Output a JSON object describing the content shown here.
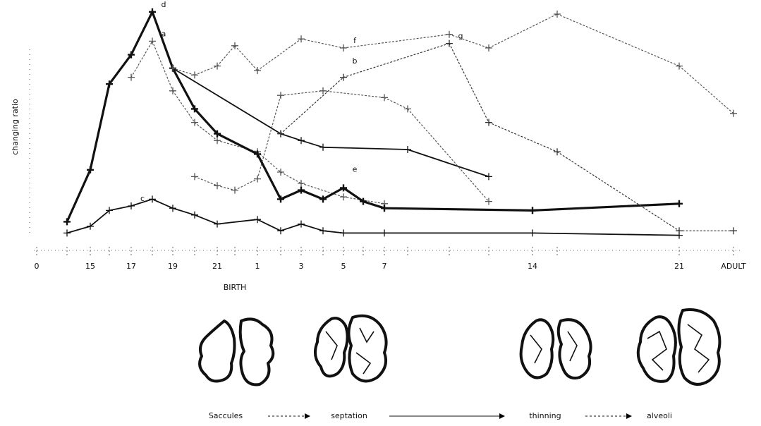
{
  "chart_data": {
    "type": "line",
    "y_label": "changing ratio",
    "categories": [
      "0",
      null,
      "15",
      null,
      "17",
      null,
      "19",
      null,
      "21",
      "BIRTH",
      "1",
      null,
      "3",
      null,
      "5",
      null,
      "7",
      null,
      null,
      null,
      "14",
      null,
      "21",
      "ADULT"
    ],
    "ylim": [
      0,
      105
    ],
    "series": [
      {
        "name": "a",
        "color": "#555",
        "style": "dotted",
        "values": [
          null,
          null,
          null,
          null,
          72,
          88,
          66,
          52,
          44,
          null,
          39,
          30,
          25,
          null,
          19,
          null,
          16,
          null,
          null,
          null,
          null,
          null,
          null,
          null
        ]
      },
      {
        "name": "b",
        "color": "#111",
        "style": "solid",
        "values": [
          null,
          null,
          null,
          null,
          null,
          null,
          76,
          null,
          null,
          null,
          null,
          47,
          44,
          41,
          null,
          null,
          null,
          40,
          null,
          28,
          null,
          null,
          null,
          null
        ]
      },
      {
        "name": "c",
        "color": "#111",
        "style": "solid",
        "values": [
          null,
          3,
          6,
          13,
          15,
          18,
          14,
          11,
          7,
          null,
          9,
          4,
          7,
          4,
          3,
          null,
          3,
          null,
          null,
          null,
          3,
          null,
          2,
          null
        ]
      },
      {
        "name": "d",
        "color": "#111",
        "style": "bold",
        "values": [
          null,
          8,
          31,
          69,
          82,
          101,
          76,
          58,
          47,
          null,
          38,
          18,
          22,
          18,
          23,
          17,
          14,
          null,
          null,
          null,
          13,
          null,
          16,
          null
        ]
      },
      {
        "name": "e",
        "color": "#555",
        "style": "dotted",
        "values": [
          null,
          null,
          null,
          null,
          null,
          null,
          null,
          28,
          24,
          22,
          27,
          64,
          null,
          66,
          null,
          null,
          63,
          58,
          null,
          17,
          null,
          null,
          null,
          null
        ]
      },
      {
        "name": "f",
        "color": "#555",
        "style": "dotted",
        "values": [
          null,
          null,
          null,
          null,
          null,
          null,
          76,
          73,
          77,
          86,
          75,
          null,
          89,
          null,
          85,
          null,
          null,
          null,
          91,
          85,
          null,
          100,
          77,
          56
        ]
      },
      {
        "name": "g",
        "color": "#333",
        "style": "dotted",
        "values": [
          null,
          null,
          null,
          null,
          null,
          null,
          null,
          null,
          null,
          null,
          null,
          47,
          null,
          null,
          72,
          null,
          null,
          null,
          87,
          52,
          null,
          39,
          4,
          4
        ]
      }
    ]
  },
  "stages": [
    "Saccules",
    "septation",
    "thinning",
    "alveoli"
  ]
}
